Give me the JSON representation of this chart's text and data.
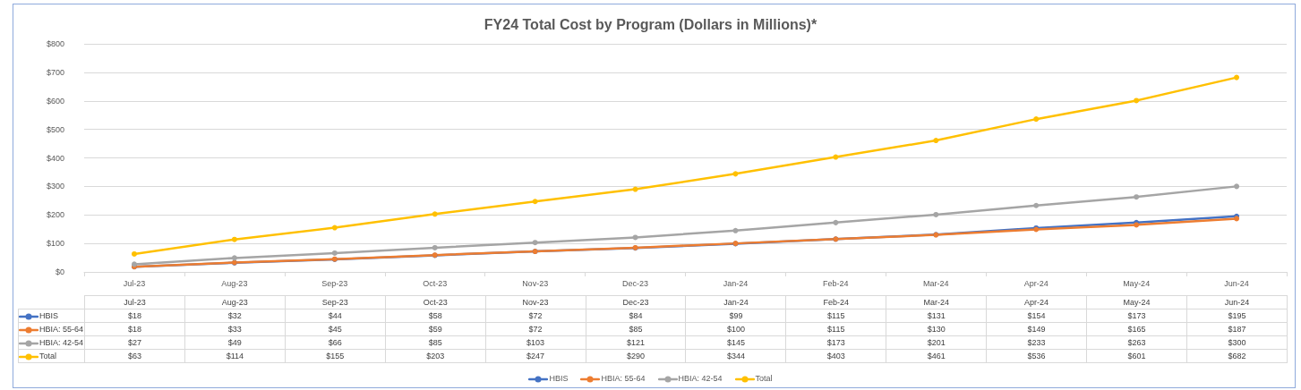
{
  "chart_data": {
    "type": "line",
    "title": "FY24 Total Cost by Program (Dollars in Millions)*",
    "categories": [
      "Jul-23",
      "Aug-23",
      "Sep-23",
      "Oct-23",
      "Nov-23",
      "Dec-23",
      "Jan-24",
      "Feb-24",
      "Mar-24",
      "Apr-24",
      "May-24",
      "Jun-24"
    ],
    "series": [
      {
        "name": "HBIS",
        "color": "#4472c4",
        "values": [
          18,
          32,
          44,
          58,
          72,
          84,
          99,
          115,
          131,
          154,
          173,
          195
        ],
        "value_labels": [
          "$18",
          "$32",
          "$44",
          "$58",
          "$72",
          "$84",
          "$99",
          "$115",
          "$131",
          "$154",
          "$173",
          "$195"
        ]
      },
      {
        "name": "HBIA: 55-64",
        "color": "#ed7d31",
        "values": [
          18,
          33,
          45,
          59,
          72,
          85,
          100,
          115,
          130,
          149,
          165,
          187
        ],
        "value_labels": [
          "$18",
          "$33",
          "$45",
          "$59",
          "$72",
          "$85",
          "$100",
          "$115",
          "$130",
          "$149",
          "$165",
          "$187"
        ]
      },
      {
        "name": "HBIA: 42-54",
        "color": "#a5a5a5",
        "values": [
          27,
          49,
          66,
          85,
          103,
          121,
          145,
          173,
          201,
          233,
          263,
          300
        ],
        "value_labels": [
          "$27",
          "$49",
          "$66",
          "$85",
          "$103",
          "$121",
          "$145",
          "$173",
          "$201",
          "$233",
          "$263",
          "$300"
        ]
      },
      {
        "name": "Total",
        "color": "#ffc000",
        "values": [
          63,
          114,
          155,
          203,
          247,
          290,
          344,
          403,
          461,
          536,
          601,
          682
        ],
        "value_labels": [
          "$63",
          "$114",
          "$155",
          "$203",
          "$247",
          "$290",
          "$344",
          "$403",
          "$461",
          "$536",
          "$601",
          "$682"
        ]
      }
    ],
    "ylim": [
      0,
      800
    ],
    "yticks": [
      {
        "value": 0,
        "label": "$0"
      },
      {
        "value": 100,
        "label": "$100"
      },
      {
        "value": 200,
        "label": "$200"
      },
      {
        "value": 300,
        "label": "$300"
      },
      {
        "value": 400,
        "label": "$400"
      },
      {
        "value": 500,
        "label": "$500"
      },
      {
        "value": 600,
        "label": "$600"
      },
      {
        "value": 700,
        "label": "$700"
      },
      {
        "value": 800,
        "label": "$800"
      }
    ],
    "grid": "y",
    "legend": "bottom",
    "marker": "circle",
    "line_style": "solid"
  }
}
